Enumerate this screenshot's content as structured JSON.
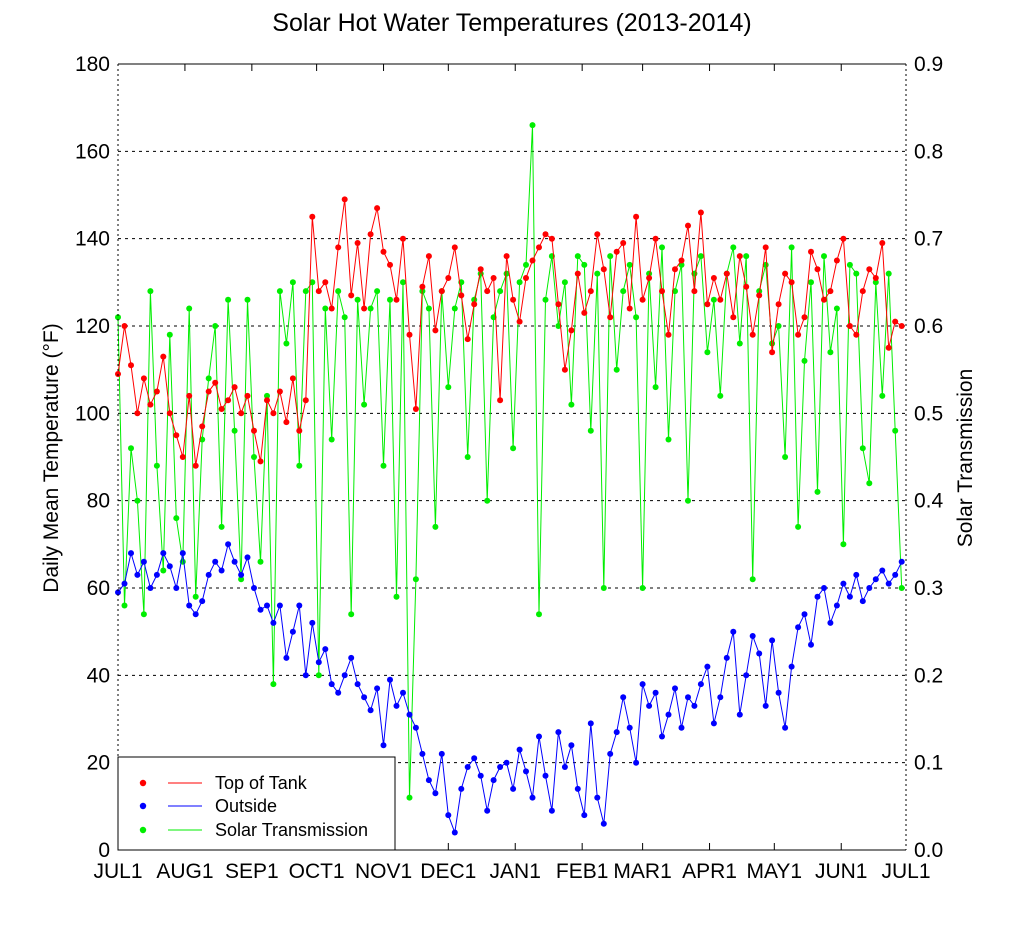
{
  "chart_data": {
    "type": "line",
    "title": "Solar Hot Water Temperatures (2013-2014)",
    "xlabel": "",
    "ylabel": "Daily Mean Temperature (°F)",
    "y2label": "Solar Transmission",
    "xlim_days": [
      0,
      365
    ],
    "ylim": [
      0,
      180
    ],
    "y2lim": [
      0.0,
      0.9
    ],
    "grid": true,
    "legend_position": "bottom-left",
    "x_ticks": [
      {
        "day": 0,
        "label": "JUL1"
      },
      {
        "day": 31,
        "label": "AUG1"
      },
      {
        "day": 62,
        "label": "SEP1"
      },
      {
        "day": 92,
        "label": "OCT1"
      },
      {
        "day": 123,
        "label": "NOV1"
      },
      {
        "day": 153,
        "label": "DEC1"
      },
      {
        "day": 184,
        "label": "JAN1"
      },
      {
        "day": 215,
        "label": "FEB1"
      },
      {
        "day": 243,
        "label": "MAR1"
      },
      {
        "day": 274,
        "label": "APR1"
      },
      {
        "day": 304,
        "label": "MAY1"
      },
      {
        "day": 335,
        "label": "JUN1"
      },
      {
        "day": 365,
        "label": "JUL1"
      }
    ],
    "y_ticks": [
      "0",
      "20",
      "40",
      "60",
      "80",
      "100",
      "120",
      "140",
      "160",
      "180"
    ],
    "y2_ticks": [
      "0.0",
      "0.1",
      "0.2",
      "0.3",
      "0.4",
      "0.5",
      "0.6",
      "0.7",
      "0.8",
      "0.9"
    ],
    "x_unit": "days since JUL1 2013 (sampled every 3 days)",
    "series": [
      {
        "name": "Top of Tank",
        "axis": "left",
        "color": "#ff0000",
        "x": [
          0,
          3,
          6,
          9,
          12,
          15,
          18,
          21,
          24,
          27,
          30,
          33,
          36,
          39,
          42,
          45,
          48,
          51,
          54,
          57,
          60,
          63,
          66,
          69,
          72,
          75,
          78,
          81,
          84,
          87,
          90,
          93,
          96,
          99,
          102,
          105,
          108,
          111,
          114,
          117,
          120,
          123,
          126,
          129,
          132,
          135,
          138,
          141,
          144,
          147,
          150,
          153,
          156,
          159,
          162,
          165,
          168,
          171,
          174,
          177,
          180,
          183,
          186,
          189,
          192,
          195,
          198,
          201,
          204,
          207,
          210,
          213,
          216,
          219,
          222,
          225,
          228,
          231,
          234,
          237,
          240,
          243,
          246,
          249,
          252,
          255,
          258,
          261,
          264,
          267,
          270,
          273,
          276,
          279,
          282,
          285,
          288,
          291,
          294,
          297,
          300,
          303,
          306,
          309,
          312,
          315,
          318,
          321,
          324,
          327,
          330,
          333,
          336,
          339,
          342,
          345,
          348,
          351,
          354,
          357,
          360,
          363
        ],
        "values": [
          109,
          120,
          111,
          100,
          108,
          102,
          105,
          113,
          100,
          95,
          90,
          104,
          88,
          97,
          105,
          107,
          101,
          103,
          106,
          100,
          104,
          96,
          89,
          103,
          100,
          105,
          98,
          108,
          96,
          103,
          145,
          128,
          130,
          124,
          138,
          149,
          127,
          139,
          124,
          141,
          147,
          137,
          134,
          126,
          140,
          118,
          101,
          129,
          136,
          119,
          128,
          131,
          138,
          127,
          117,
          125,
          133,
          128,
          131,
          103,
          136,
          126,
          121,
          131,
          135,
          138,
          141,
          140,
          125,
          110,
          119,
          132,
          123,
          128,
          141,
          133,
          122,
          137,
          139,
          124,
          145,
          126,
          131,
          140,
          128,
          118,
          133,
          135,
          143,
          128,
          146,
          125,
          131,
          126,
          132,
          122,
          136,
          129,
          118,
          127,
          138,
          114,
          125,
          132,
          130,
          118,
          122,
          137,
          133,
          126,
          128,
          135,
          140,
          120,
          118,
          128,
          133,
          131,
          139,
          115,
          121,
          120
        ],
        "markers": true
      },
      {
        "name": "Outside",
        "axis": "left",
        "color": "#0000ff",
        "x": [
          0,
          3,
          6,
          9,
          12,
          15,
          18,
          21,
          24,
          27,
          30,
          33,
          36,
          39,
          42,
          45,
          48,
          51,
          54,
          57,
          60,
          63,
          66,
          69,
          72,
          75,
          78,
          81,
          84,
          87,
          90,
          93,
          96,
          99,
          102,
          105,
          108,
          111,
          114,
          117,
          120,
          123,
          126,
          129,
          132,
          135,
          138,
          141,
          144,
          147,
          150,
          153,
          156,
          159,
          162,
          165,
          168,
          171,
          174,
          177,
          180,
          183,
          186,
          189,
          192,
          195,
          198,
          201,
          204,
          207,
          210,
          213,
          216,
          219,
          222,
          225,
          228,
          231,
          234,
          237,
          240,
          243,
          246,
          249,
          252,
          255,
          258,
          261,
          264,
          267,
          270,
          273,
          276,
          279,
          282,
          285,
          288,
          291,
          294,
          297,
          300,
          303,
          306,
          309,
          312,
          315,
          318,
          321,
          324,
          327,
          330,
          333,
          336,
          339,
          342,
          345,
          348,
          351,
          354,
          357,
          360,
          363
        ],
        "values": [
          59,
          61,
          68,
          63,
          66,
          60,
          63,
          68,
          65,
          60,
          68,
          56,
          54,
          57,
          63,
          66,
          64,
          70,
          66,
          63,
          67,
          60,
          55,
          56,
          52,
          56,
          44,
          50,
          56,
          40,
          52,
          43,
          46,
          38,
          36,
          40,
          44,
          38,
          35,
          32,
          37,
          24,
          39,
          33,
          36,
          31,
          28,
          22,
          16,
          13,
          22,
          8,
          4,
          14,
          19,
          21,
          17,
          9,
          16,
          19,
          20,
          14,
          23,
          18,
          12,
          26,
          17,
          9,
          27,
          19,
          24,
          14,
          8,
          29,
          12,
          6,
          22,
          27,
          35,
          28,
          20,
          38,
          33,
          36,
          26,
          31,
          37,
          28,
          35,
          33,
          38,
          42,
          29,
          35,
          44,
          50,
          31,
          40,
          49,
          45,
          33,
          48,
          36,
          28,
          42,
          51,
          54,
          47,
          58,
          60,
          52,
          56,
          61,
          58,
          63,
          57,
          60,
          62,
          64,
          61,
          63,
          66
        ],
        "markers": true
      },
      {
        "name": "Solar Transmission",
        "axis": "right",
        "color": "#00ee00",
        "x": [
          0,
          3,
          6,
          9,
          12,
          15,
          18,
          21,
          24,
          27,
          30,
          33,
          36,
          39,
          42,
          45,
          48,
          51,
          54,
          57,
          60,
          63,
          66,
          69,
          72,
          75,
          78,
          81,
          84,
          87,
          90,
          93,
          96,
          99,
          102,
          105,
          108,
          111,
          114,
          117,
          120,
          123,
          126,
          129,
          132,
          135,
          138,
          141,
          144,
          147,
          150,
          153,
          156,
          159,
          162,
          165,
          168,
          171,
          174,
          177,
          180,
          183,
          186,
          189,
          192,
          195,
          198,
          201,
          204,
          207,
          210,
          213,
          216,
          219,
          222,
          225,
          228,
          231,
          234,
          237,
          240,
          243,
          246,
          249,
          252,
          255,
          258,
          261,
          264,
          267,
          270,
          273,
          276,
          279,
          282,
          285,
          288,
          291,
          294,
          297,
          300,
          303,
          306,
          309,
          312,
          315,
          318,
          321,
          324,
          327,
          330,
          333,
          336,
          339,
          342,
          345,
          348,
          351,
          354,
          357,
          360,
          363
        ],
        "values": [
          0.61,
          0.28,
          0.46,
          0.4,
          0.27,
          0.64,
          0.44,
          0.32,
          0.59,
          0.38,
          0.33,
          0.62,
          0.29,
          0.47,
          0.54,
          0.6,
          0.37,
          0.63,
          0.48,
          0.31,
          0.63,
          0.45,
          0.33,
          0.52,
          0.19,
          0.64,
          0.58,
          0.65,
          0.44,
          0.64,
          0.65,
          0.2,
          0.62,
          0.47,
          0.64,
          0.61,
          0.27,
          0.63,
          0.51,
          0.62,
          0.64,
          0.44,
          0.63,
          0.29,
          0.65,
          0.06,
          0.31,
          0.64,
          0.62,
          0.37,
          0.64,
          0.53,
          0.62,
          0.65,
          0.45,
          0.63,
          0.66,
          0.4,
          0.61,
          0.64,
          0.66,
          0.46,
          0.65,
          0.67,
          0.83,
          0.27,
          0.63,
          0.68,
          0.6,
          0.65,
          0.51,
          0.68,
          0.67,
          0.48,
          0.66,
          0.3,
          0.68,
          0.55,
          0.64,
          0.67,
          0.61,
          0.3,
          0.66,
          0.53,
          0.69,
          0.47,
          0.64,
          0.67,
          0.4,
          0.66,
          0.68,
          0.57,
          0.63,
          0.52,
          0.66,
          0.69,
          0.58,
          0.68,
          0.31,
          0.64,
          0.67,
          0.58,
          0.6,
          0.45,
          0.69,
          0.37,
          0.56,
          0.65,
          0.41,
          0.68,
          0.57,
          0.62,
          0.35,
          0.67,
          0.66,
          0.46,
          0.42,
          0.65,
          0.52,
          0.66,
          0.48,
          0.3
        ],
        "markers": true
      }
    ]
  },
  "legend": {
    "items": [
      {
        "label": "Top of Tank",
        "color": "#ff0000"
      },
      {
        "label": "Outside",
        "color": "#0000ff"
      },
      {
        "label": "Solar Transmission",
        "color": "#00ee00"
      }
    ]
  }
}
